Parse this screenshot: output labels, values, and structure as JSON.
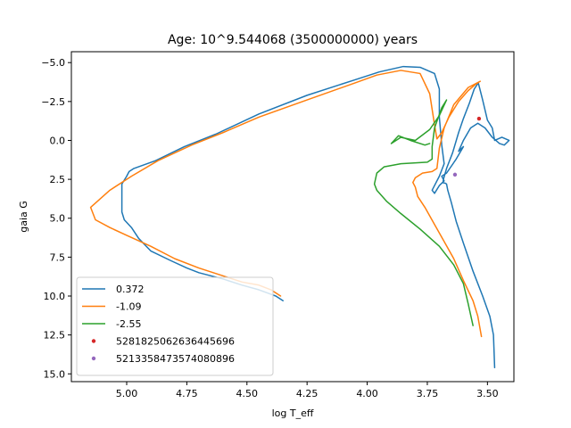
{
  "chart_data": {
    "type": "line",
    "title": "Age: 10^9.544068 (3500000000) years",
    "xlabel": "log T_eff",
    "ylabel": "gaia G",
    "xlim": [
      5.23,
      3.39
    ],
    "ylim": [
      15.5,
      -5.7
    ],
    "x_ticks": [
      5.0,
      4.75,
      4.5,
      4.25,
      4.0,
      3.75,
      3.5
    ],
    "x_tick_labels": [
      "5.00",
      "4.75",
      "4.50",
      "4.25",
      "4.00",
      "3.75",
      "3.50"
    ],
    "y_ticks": [
      -5.0,
      -2.5,
      0.0,
      2.5,
      5.0,
      7.5,
      10.0,
      12.5,
      15.0
    ],
    "y_tick_labels": [
      "−5.0",
      "−2.5",
      "0.0",
      "2.5",
      "5.0",
      "7.5",
      "10.0",
      "12.5",
      "15.0"
    ],
    "grid": false,
    "legend_position": "lower-left",
    "series": [
      {
        "name": "0.372",
        "kind": "line",
        "color": "#1f77b4",
        "points": [
          [
            3.47,
            14.6
          ],
          [
            3.475,
            12.5
          ],
          [
            3.49,
            11.3
          ],
          [
            3.52,
            10.0
          ],
          [
            3.56,
            8.4
          ],
          [
            3.6,
            6.6
          ],
          [
            3.63,
            5.2
          ],
          [
            3.65,
            4.0
          ],
          [
            3.665,
            3.2
          ],
          [
            3.67,
            2.8
          ],
          [
            3.675,
            2.75
          ],
          [
            3.685,
            2.72
          ],
          [
            3.683,
            2.5
          ],
          [
            3.67,
            1.8
          ],
          [
            3.645,
            0.8
          ],
          [
            3.62,
            -0.5
          ],
          [
            3.6,
            -1.4
          ],
          [
            3.575,
            -2.4
          ],
          [
            3.555,
            -3.3
          ],
          [
            3.538,
            -3.7
          ],
          [
            3.52,
            -2.6
          ],
          [
            3.5,
            -1.3
          ],
          [
            3.48,
            -0.8
          ],
          [
            3.47,
            0.0
          ],
          [
            3.44,
            -0.2
          ],
          [
            3.41,
            0.0
          ],
          [
            3.43,
            0.3
          ],
          [
            3.45,
            0.2
          ],
          [
            3.48,
            -0.2
          ],
          [
            3.51,
            -0.8
          ],
          [
            3.54,
            -1.1
          ],
          [
            3.57,
            -0.8
          ],
          [
            3.6,
            0.0
          ],
          [
            3.62,
            0.7
          ],
          [
            3.6,
            0.4
          ],
          [
            3.63,
            1.2
          ],
          [
            3.67,
            2.1
          ],
          [
            3.69,
            2.3
          ],
          [
            3.68,
            2.6
          ],
          [
            3.7,
            2.9
          ],
          [
            3.72,
            3.4
          ],
          [
            3.73,
            3.2
          ],
          [
            3.7,
            2.3
          ],
          [
            3.68,
            1.5
          ],
          [
            3.69,
            0.3
          ],
          [
            3.7,
            -1.5
          ],
          [
            3.7,
            -3.3
          ],
          [
            3.72,
            -4.3
          ],
          [
            3.78,
            -4.7
          ],
          [
            3.85,
            -4.75
          ],
          [
            3.95,
            -4.4
          ],
          [
            4.05,
            -3.9
          ],
          [
            4.25,
            -2.9
          ],
          [
            4.45,
            -1.7
          ],
          [
            4.63,
            -0.4
          ],
          [
            4.76,
            0.4
          ],
          [
            4.88,
            1.3
          ],
          [
            4.97,
            1.8
          ],
          [
            4.99,
            2.0
          ],
          [
            5.0,
            2.3
          ],
          [
            5.02,
            2.8
          ],
          [
            5.02,
            3.3
          ],
          [
            5.02,
            4.0
          ],
          [
            5.02,
            4.6
          ],
          [
            5.01,
            5.1
          ],
          [
            4.98,
            5.6
          ],
          [
            4.95,
            6.3
          ],
          [
            4.9,
            7.1
          ],
          [
            4.82,
            7.7
          ],
          [
            4.75,
            8.2
          ],
          [
            4.7,
            8.5
          ],
          [
            4.6,
            8.9
          ],
          [
            4.52,
            9.3
          ],
          [
            4.45,
            9.6
          ],
          [
            4.38,
            10.0
          ],
          [
            4.35,
            10.3
          ]
        ]
      },
      {
        "name": "-1.09",
        "kind": "line",
        "color": "#ff7f0e",
        "points": [
          [
            3.525,
            12.6
          ],
          [
            3.54,
            11.3
          ],
          [
            3.56,
            10.3
          ],
          [
            3.6,
            9.0
          ],
          [
            3.64,
            7.6
          ],
          [
            3.68,
            6.5
          ],
          [
            3.72,
            5.4
          ],
          [
            3.76,
            4.3
          ],
          [
            3.79,
            3.6
          ],
          [
            3.8,
            3.0
          ],
          [
            3.81,
            2.7
          ],
          [
            3.8,
            2.4
          ],
          [
            3.77,
            2.1
          ],
          [
            3.73,
            2.0
          ],
          [
            3.71,
            1.8
          ],
          [
            3.7,
            0.5
          ],
          [
            3.68,
            -0.8
          ],
          [
            3.64,
            -2.3
          ],
          [
            3.58,
            -3.4
          ],
          [
            3.53,
            -3.8
          ],
          [
            3.55,
            -3.6
          ],
          [
            3.58,
            -3.2
          ],
          [
            3.62,
            -2.5
          ],
          [
            3.66,
            -1.5
          ],
          [
            3.69,
            -0.5
          ],
          [
            3.71,
            -0.1
          ],
          [
            3.72,
            -1.0
          ],
          [
            3.74,
            -3.0
          ],
          [
            3.78,
            -4.3
          ],
          [
            3.86,
            -4.5
          ],
          [
            3.96,
            -4.2
          ],
          [
            4.05,
            -3.7
          ],
          [
            4.25,
            -2.6
          ],
          [
            4.45,
            -1.5
          ],
          [
            4.6,
            -0.5
          ],
          [
            4.73,
            0.3
          ],
          [
            4.87,
            1.3
          ],
          [
            4.98,
            2.3
          ],
          [
            5.07,
            3.2
          ],
          [
            5.15,
            4.3
          ],
          [
            5.13,
            5.1
          ],
          [
            5.07,
            5.6
          ],
          [
            5.0,
            6.1
          ],
          [
            4.9,
            6.8
          ],
          [
            4.8,
            7.6
          ],
          [
            4.7,
            8.2
          ],
          [
            4.6,
            8.7
          ],
          [
            4.52,
            9.1
          ],
          [
            4.45,
            9.3
          ],
          [
            4.4,
            9.6
          ],
          [
            4.36,
            10.0
          ]
        ]
      },
      {
        "name": "-2.55",
        "kind": "line",
        "color": "#2ca02c",
        "points": [
          [
            3.56,
            11.9
          ],
          [
            3.58,
            10.5
          ],
          [
            3.6,
            9.2
          ],
          [
            3.64,
            8.0
          ],
          [
            3.7,
            6.8
          ],
          [
            3.78,
            5.7
          ],
          [
            3.86,
            4.7
          ],
          [
            3.92,
            3.9
          ],
          [
            3.96,
            3.2
          ],
          [
            3.97,
            2.8
          ],
          [
            3.96,
            2.1
          ],
          [
            3.93,
            1.7
          ],
          [
            3.86,
            1.5
          ],
          [
            3.75,
            1.4
          ],
          [
            3.73,
            1.2
          ],
          [
            3.73,
            0.4
          ],
          [
            3.72,
            -0.8
          ],
          [
            3.69,
            -2.1
          ],
          [
            3.67,
            -2.6
          ],
          [
            3.7,
            -1.6
          ],
          [
            3.74,
            -0.7
          ],
          [
            3.8,
            0.0
          ],
          [
            3.86,
            -0.2
          ],
          [
            3.9,
            0.2
          ],
          [
            3.87,
            -0.3
          ],
          [
            3.82,
            0.0
          ],
          [
            3.76,
            0.3
          ],
          [
            3.74,
            0.2
          ]
        ]
      },
      {
        "name": "5281825062636445696",
        "kind": "scatter",
        "color": "#d62728",
        "points": [
          [
            3.535,
            -1.4
          ]
        ]
      },
      {
        "name": "5213358473574080896",
        "kind": "scatter",
        "color": "#9467bd",
        "points": [
          [
            3.635,
            2.2
          ]
        ]
      }
    ]
  }
}
